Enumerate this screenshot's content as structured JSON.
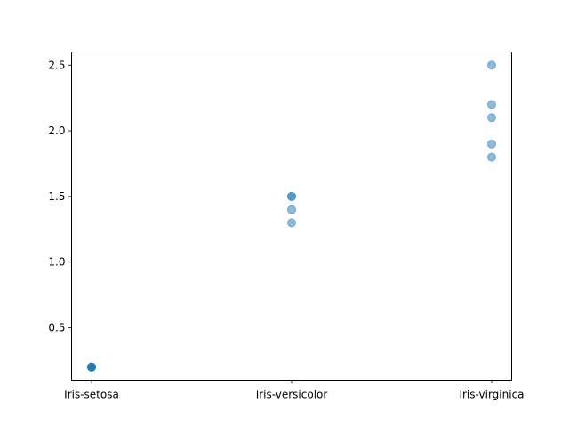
{
  "chart_data": {
    "type": "scatter",
    "title": "",
    "xlabel": "",
    "ylabel": "",
    "categories": [
      "Iris-setosa",
      "Iris-versicolor",
      "Iris-virginica"
    ],
    "y_ticks": [
      "0.5",
      "1.0",
      "1.5",
      "2.0",
      "2.5"
    ],
    "ylim": [
      0.1,
      2.6
    ],
    "grid": false,
    "color": "#1f77b4",
    "alpha": 0.5,
    "points": [
      {
        "category": "Iris-setosa",
        "y": 0.2
      },
      {
        "category": "Iris-setosa",
        "y": 0.2
      },
      {
        "category": "Iris-setosa",
        "y": 0.2
      },
      {
        "category": "Iris-setosa",
        "y": 0.2
      },
      {
        "category": "Iris-setosa",
        "y": 0.2
      },
      {
        "category": "Iris-versicolor",
        "y": 1.5
      },
      {
        "category": "Iris-versicolor",
        "y": 1.5
      },
      {
        "category": "Iris-versicolor",
        "y": 1.4
      },
      {
        "category": "Iris-versicolor",
        "y": 1.3
      },
      {
        "category": "Iris-virginica",
        "y": 2.5
      },
      {
        "category": "Iris-virginica",
        "y": 2.2
      },
      {
        "category": "Iris-virginica",
        "y": 2.1
      },
      {
        "category": "Iris-virginica",
        "y": 1.9
      },
      {
        "category": "Iris-virginica",
        "y": 1.8
      }
    ]
  }
}
